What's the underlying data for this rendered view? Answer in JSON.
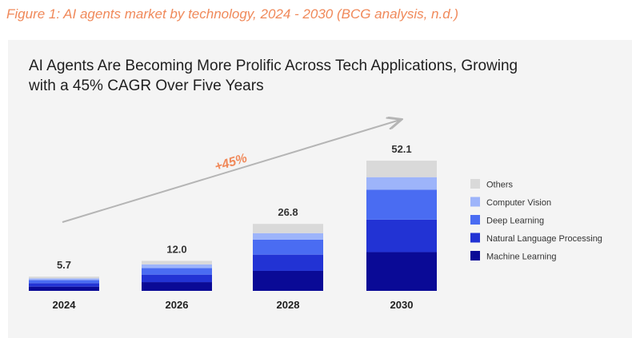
{
  "caption": "Figure 1: AI agents market by technology, 2024 - 2030 (BCG analysis, n.d.)",
  "chart_data": {
    "type": "bar",
    "stacked": true,
    "title": "AI Agents Are Becoming More Prolific Across Tech Applications, Growing with a 45% CAGR Over Five Years",
    "categories": [
      "2024",
      "2026",
      "2028",
      "2030"
    ],
    "totals": [
      "5.7",
      "12.0",
      "26.8",
      "52.1"
    ],
    "series": [
      {
        "name": "Machine Learning",
        "color": "#0a0a96",
        "values": [
          1.7,
          3.5,
          8.0,
          15.5
        ]
      },
      {
        "name": "Natural Language Processing",
        "color": "#2233d4",
        "values": [
          1.4,
          3.0,
          6.5,
          13.0
        ]
      },
      {
        "name": "Deep Learning",
        "color": "#4a6cf2",
        "values": [
          1.2,
          2.6,
          6.0,
          12.0
        ]
      },
      {
        "name": "Computer Vision",
        "color": "#9db4fa",
        "values": [
          0.7,
          1.5,
          2.6,
          5.0
        ]
      },
      {
        "name": "Others",
        "color": "#d9d9d9",
        "values": [
          0.7,
          1.4,
          3.7,
          6.6
        ]
      }
    ],
    "legend_order": [
      "Others",
      "Computer Vision",
      "Deep Learning",
      "Natural Language Processing",
      "Machine Learning"
    ],
    "annotation": "+45%",
    "annotation_color": "#f0895a",
    "xlabel": "",
    "ylabel": "",
    "ylim": [
      0,
      55
    ],
    "legend_position": "right"
  }
}
